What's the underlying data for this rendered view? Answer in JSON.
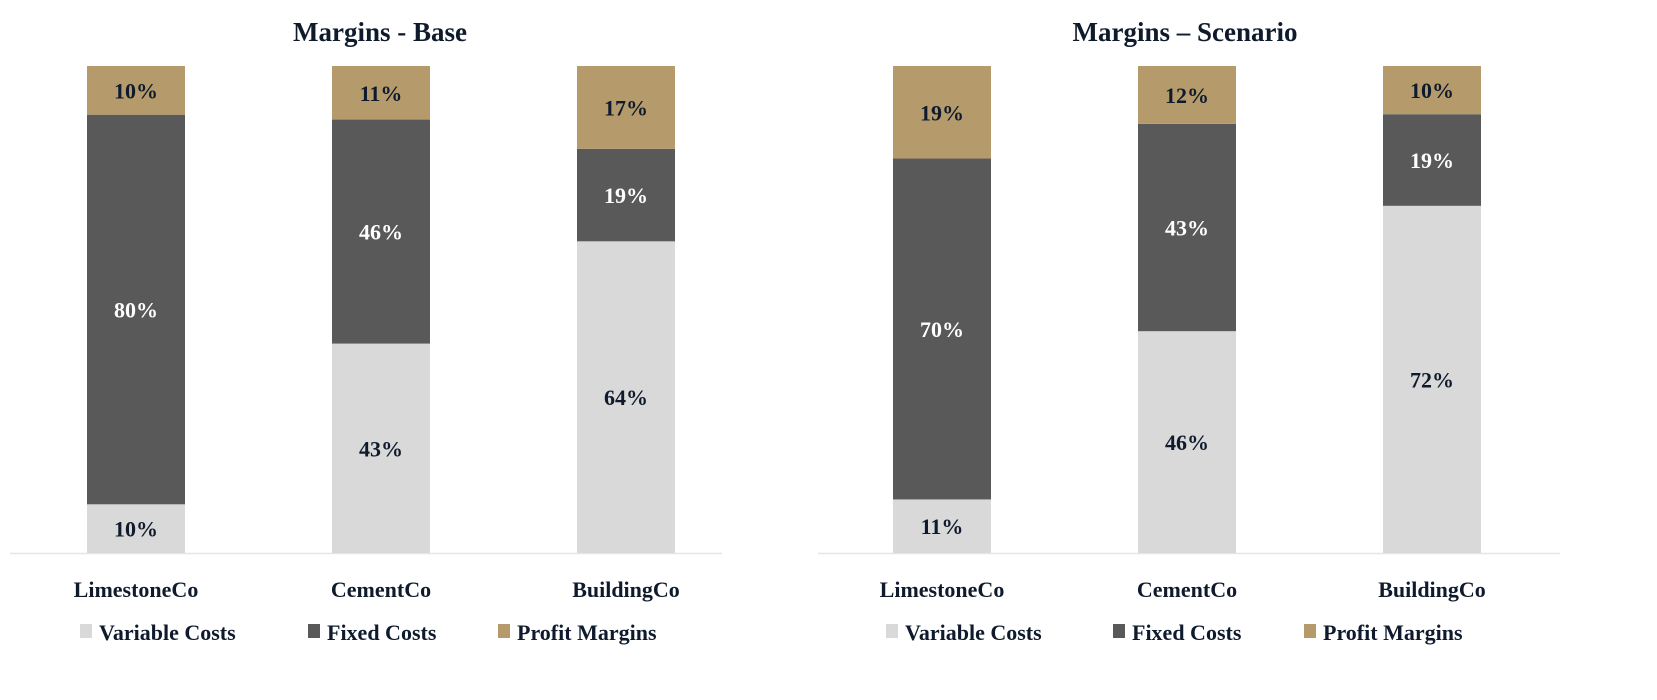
{
  "chart_data": [
    {
      "type": "bar",
      "stacked": true,
      "title": "Margins - Base",
      "categories": [
        "LimestoneCo",
        "CementCo",
        "BuildingCo"
      ],
      "series": [
        {
          "name": "Variable Costs",
          "color": "#d9d9d9",
          "values": [
            10,
            43,
            64
          ],
          "labels": [
            "10%",
            "43%",
            "64%"
          ]
        },
        {
          "name": "Fixed Costs",
          "color": "#595959",
          "values": [
            80,
            46,
            19
          ],
          "labels": [
            "80%",
            "46%",
            "19%"
          ]
        },
        {
          "name": "Profit Margins",
          "color": "#b59b6c",
          "values": [
            10,
            11,
            17
          ],
          "labels": [
            "10%",
            "11%",
            "17%"
          ]
        }
      ],
      "legend": "bottom",
      "grid": false
    },
    {
      "type": "bar",
      "stacked": true,
      "title": "Margins – Scenario",
      "categories": [
        "LimestoneCo",
        "CementCo",
        "BuildingCo"
      ],
      "series": [
        {
          "name": "Variable Costs",
          "color": "#d9d9d9",
          "values": [
            11,
            46,
            72
          ],
          "labels": [
            "11%",
            "46%",
            "72%"
          ]
        },
        {
          "name": "Fixed Costs",
          "color": "#595959",
          "values": [
            70,
            43,
            19
          ],
          "labels": [
            "70%",
            "43%",
            "19%"
          ]
        },
        {
          "name": "Profit Margins",
          "color": "#b59b6c",
          "values": [
            19,
            12,
            10
          ],
          "labels": [
            "19%",
            "12%",
            "10%"
          ]
        }
      ],
      "legend": "bottom",
      "grid": false
    }
  ],
  "colors": {
    "text": "#0f1b2d",
    "label_on_dark": "#ffffff",
    "axis": "#e6e6e6"
  }
}
